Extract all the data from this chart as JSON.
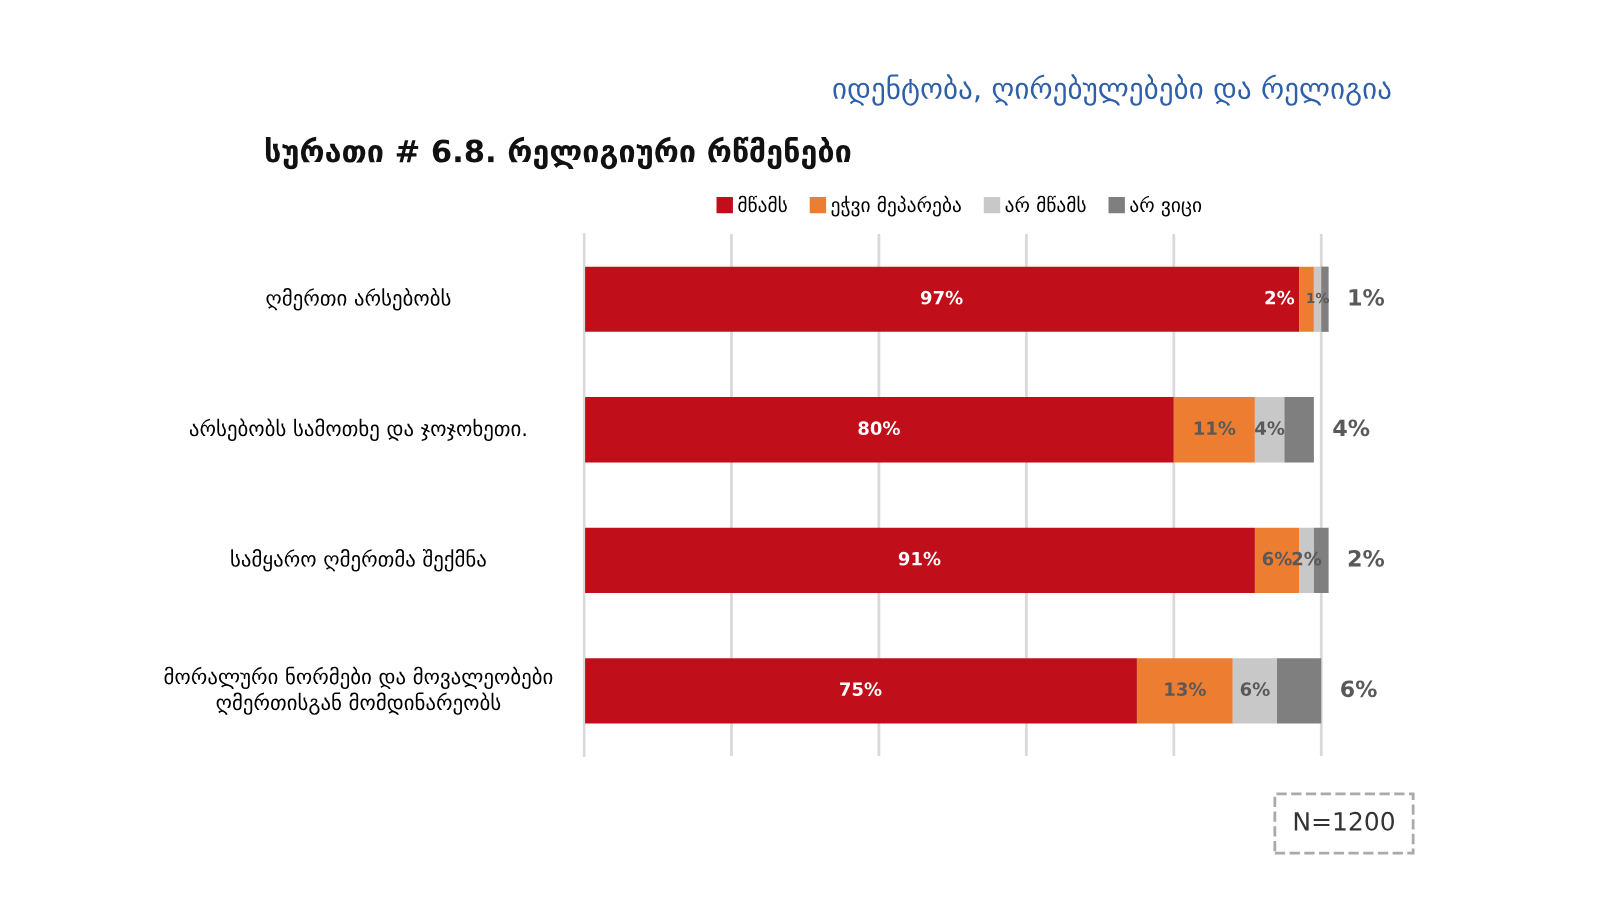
{
  "chart_data": {
    "type": "bar",
    "orientation": "horizontal",
    "stacked": true,
    "subtitle": "იდენტობა, ღირებულებები და რელიგია",
    "title": "სურათი # 6.8. რელიგიური რწმენები",
    "categories": [
      "ღმერთი არსებობს",
      "არსებობს სამოთხე და ჯოჯოხეთი.",
      "სამყარო ღმერთმა შექმნა",
      "მორალური ნორმები და მოვალეობები ღმერთისგან მომდინარეობს"
    ],
    "series": [
      {
        "name": "მწამს",
        "color": "#c00f1a",
        "values": [
          97,
          80,
          91,
          75
        ],
        "value_labels": [
          "97%",
          "80%",
          "91%",
          "75%"
        ]
      },
      {
        "name": "ეჭვი მეპარება",
        "color": "#ed7d31",
        "values": [
          2,
          11,
          6,
          13
        ],
        "value_labels": [
          "2%",
          "11%",
          "6%",
          "13%"
        ]
      },
      {
        "name": "არ მწამს",
        "color": "#c8c8c8",
        "values": [
          1,
          4,
          2,
          6
        ],
        "value_labels": [
          "1%",
          "4%",
          "2%",
          "6%"
        ]
      },
      {
        "name": "არ ვიცი",
        "color": "#7f7f7f",
        "values": [
          1,
          4,
          2,
          6
        ],
        "value_labels": [
          "1%",
          "4%",
          "2%",
          "6%"
        ]
      }
    ],
    "xlim": [
      0,
      102
    ],
    "xticks": [
      {
        "value": 0,
        "label": null
      },
      {
        "value": 20,
        "label": null
      },
      {
        "value": 40,
        "label": null
      },
      {
        "value": 60,
        "label": null
      },
      {
        "value": 80,
        "label": null
      },
      {
        "value": 100,
        "label": null
      }
    ],
    "tick_labels": "y",
    "grid": "x",
    "legend": "top",
    "annotations": [
      "N=1200"
    ]
  }
}
